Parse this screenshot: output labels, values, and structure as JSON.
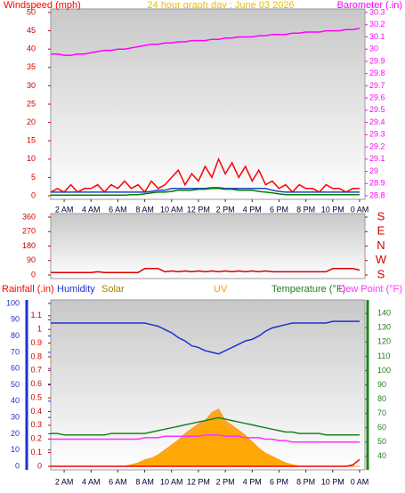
{
  "chart_data": [
    {
      "type": "line",
      "title": "24 hour graph day : June 03 2026",
      "x": [
        1,
        1.5,
        2,
        2.5,
        3,
        3.5,
        4,
        4.5,
        5,
        5.5,
        6,
        6.5,
        7,
        7.5,
        8,
        8.5,
        9,
        9.5,
        10,
        10.5,
        11,
        11.5,
        12,
        12.5,
        13,
        13.5,
        14,
        14.5,
        15,
        15.5,
        16,
        16.5,
        17,
        17.5,
        18,
        18.5,
        19,
        19.5,
        20,
        20.5,
        21,
        21.5,
        22,
        22.5,
        23,
        23.5,
        24
      ],
      "xlim": [
        1,
        24.4
      ],
      "xticks": [
        {
          "value": 2,
          "label": "2 AM"
        },
        {
          "value": 4,
          "label": "4 AM"
        },
        {
          "value": 6,
          "label": "6 AM"
        },
        {
          "value": 8,
          "label": "8 AM"
        },
        {
          "value": 10,
          "label": "10 AM"
        },
        {
          "value": 12,
          "label": "12 PM"
        },
        {
          "value": 14,
          "label": "2 PM"
        },
        {
          "value": 16,
          "label": "4 PM"
        },
        {
          "value": 18,
          "label": "6 PM"
        },
        {
          "value": 20,
          "label": "8 PM"
        },
        {
          "value": 22,
          "label": "10 PM"
        },
        {
          "value": 24,
          "label": "0 AM"
        }
      ],
      "ylim": [
        0,
        50
      ],
      "yticks": [
        0,
        5,
        10,
        15,
        20,
        25,
        30,
        35,
        40,
        45,
        50
      ],
      "y2lim": [
        28.8,
        30.3
      ],
      "y2ticks": [
        28.8,
        28.9,
        29,
        29.1,
        29.2,
        29.3,
        29.4,
        29.5,
        29.6,
        29.7,
        29.8,
        29.9,
        30,
        30.1,
        30.2,
        30.3
      ],
      "series": [
        {
          "name": "Windspeed (mph)",
          "color": "#ff0000",
          "values": [
            1,
            2,
            1,
            3,
            1,
            2,
            2,
            3,
            1,
            3,
            2,
            4,
            2,
            3,
            1,
            4,
            2,
            3,
            5,
            7,
            3,
            6,
            4,
            8,
            5,
            10,
            6,
            9,
            5,
            8,
            4,
            7,
            3,
            4,
            2,
            3,
            1,
            3,
            2,
            2,
            1,
            3,
            2,
            2,
            1,
            2,
            2
          ]
        },
        {
          "color": "#2040d0",
          "values": [
            1,
            1,
            1,
            1,
            1,
            1,
            1,
            1,
            1,
            1,
            1,
            1,
            1,
            1,
            1,
            1.2,
            1.5,
            1.5,
            2,
            2,
            2,
            2,
            2,
            2,
            2.2,
            2.2,
            2,
            2,
            2,
            2,
            2,
            2,
            2,
            1.5,
            1.2,
            1,
            1,
            1,
            1,
            1,
            1,
            1,
            1,
            1,
            1,
            1,
            1
          ]
        },
        {
          "color": "#008000",
          "values": [
            0.2,
            0.2,
            0.2,
            0.2,
            0.2,
            0.2,
            0.2,
            0.2,
            0.2,
            0.2,
            0.2,
            0.2,
            0.3,
            0.3,
            0.5,
            0.8,
            1,
            1,
            1.2,
            1.5,
            1.5,
            1.5,
            1.8,
            1.8,
            2,
            2,
            1.8,
            1.8,
            1.5,
            1.5,
            1.5,
            1.2,
            1,
            0.8,
            0.5,
            0.3,
            0.3,
            0.3,
            0.3,
            0.3,
            0.3,
            0.3,
            0.3,
            0.3,
            0.3,
            0.3,
            0.3
          ]
        },
        {
          "name": "Barometer (.in)",
          "color": "#ff00ff",
          "axis": "y2",
          "values": [
            29.96,
            29.96,
            29.95,
            29.95,
            29.96,
            29.96,
            29.97,
            29.98,
            29.99,
            29.99,
            30,
            30,
            30.01,
            30.02,
            30.03,
            30.04,
            30.04,
            30.05,
            30.05,
            30.06,
            30.06,
            30.07,
            30.07,
            30.07,
            30.08,
            30.08,
            30.09,
            30.09,
            30.1,
            30.1,
            30.1,
            30.11,
            30.11,
            30.12,
            30.12,
            30.12,
            30.13,
            30.13,
            30.14,
            30.14,
            30.14,
            30.15,
            30.15,
            30.15,
            30.16,
            30.16,
            30.17
          ]
        }
      ]
    },
    {
      "type": "line",
      "x": [
        1,
        1.5,
        2,
        2.5,
        3,
        3.5,
        4,
        4.5,
        5,
        5.5,
        6,
        6.5,
        7,
        7.5,
        8,
        8.5,
        9,
        9.5,
        10,
        10.5,
        11,
        11.5,
        12,
        12.5,
        13,
        13.5,
        14,
        14.5,
        15,
        15.5,
        16,
        16.5,
        17,
        17.5,
        18,
        18.5,
        19,
        19.5,
        20,
        20.5,
        21,
        21.5,
        22,
        22.5,
        23,
        23.5,
        24
      ],
      "xlim": [
        1,
        24.4
      ],
      "ylim": [
        0,
        360
      ],
      "yticks": [
        0,
        90,
        180,
        270,
        360
      ],
      "y2lim": [
        0,
        360
      ],
      "y2ticks": [
        {
          "value": 360,
          "label": "S"
        },
        {
          "value": 270,
          "label": "E"
        },
        {
          "value": 180,
          "label": "N"
        },
        {
          "value": 90,
          "label": "W"
        },
        {
          "value": 0,
          "label": "S"
        }
      ],
      "series": [
        {
          "color": "#e00000",
          "values": [
            15,
            15,
            15,
            15,
            15,
            15,
            15,
            20,
            15,
            15,
            15,
            15,
            15,
            15,
            40,
            40,
            40,
            20,
            25,
            20,
            25,
            20,
            25,
            20,
            25,
            20,
            25,
            20,
            25,
            20,
            25,
            20,
            25,
            20,
            20,
            20,
            20,
            20,
            20,
            20,
            20,
            20,
            40,
            40,
            40,
            40,
            30
          ]
        }
      ]
    },
    {
      "type": "line",
      "x": [
        1,
        1.5,
        2,
        2.5,
        3,
        3.5,
        4,
        4.5,
        5,
        5.5,
        6,
        6.5,
        7,
        7.5,
        8,
        8.5,
        9,
        9.5,
        10,
        10.5,
        11,
        11.5,
        12,
        12.5,
        13,
        13.5,
        14,
        14.5,
        15,
        15.5,
        16,
        16.5,
        17,
        17.5,
        18,
        18.5,
        19,
        19.5,
        20,
        20.5,
        21,
        21.5,
        22,
        22.5,
        23,
        23.5,
        24
      ],
      "xlim": [
        1,
        24.4
      ],
      "xticks": [
        {
          "value": 2,
          "label": "2 AM"
        },
        {
          "value": 4,
          "label": "4 AM"
        },
        {
          "value": 6,
          "label": "6 AM"
        },
        {
          "value": 8,
          "label": "8 AM"
        },
        {
          "value": 10,
          "label": "10 AM"
        },
        {
          "value": 12,
          "label": "12 PM"
        },
        {
          "value": 14,
          "label": "2 PM"
        },
        {
          "value": 16,
          "label": "4 PM"
        },
        {
          "value": 18,
          "label": "6 PM"
        },
        {
          "value": 20,
          "label": "8 PM"
        },
        {
          "value": 22,
          "label": "10 PM"
        },
        {
          "value": 24,
          "label": "0 AM"
        }
      ],
      "ylim": [
        0,
        100
      ],
      "yticks": [
        0,
        10,
        20,
        30,
        40,
        50,
        60,
        70,
        80,
        90,
        100
      ],
      "y2lim": [
        33,
        147
      ],
      "y2ticks": [
        40,
        50,
        60,
        70,
        80,
        90,
        100,
        110,
        120,
        130,
        140
      ],
      "y3lim": [
        0,
        1.19
      ],
      "y3ticks": [
        0,
        0.1,
        0.2,
        0.3,
        0.4,
        0.5,
        0.6,
        0.7,
        0.8,
        0.9,
        1,
        1.1
      ],
      "series": [
        {
          "name": "Rainfall (.in)",
          "color": "#ff0000",
          "axis": "y3",
          "values": [
            0,
            0,
            0,
            0,
            0,
            0,
            0,
            0,
            0,
            0,
            0,
            0,
            0,
            0,
            0,
            0,
            0,
            0,
            0,
            0,
            0,
            0,
            0,
            0,
            0,
            0,
            0,
            0,
            0,
            0,
            0,
            0,
            0,
            0,
            0,
            0,
            0,
            0,
            0,
            0,
            0,
            0,
            0,
            0,
            0,
            0.01,
            0.05
          ]
        },
        {
          "name": "Humidity",
          "color": "#2030d0",
          "values": [
            88,
            88,
            88,
            88,
            88,
            88,
            88,
            88,
            88,
            88,
            88,
            88,
            88,
            88,
            88,
            87,
            86,
            84,
            82,
            79,
            77,
            74,
            73,
            71,
            70,
            69,
            71,
            73,
            75,
            77,
            78,
            80,
            83,
            85,
            86,
            87,
            88,
            88,
            88,
            88,
            88,
            88,
            89,
            89,
            89,
            89,
            89
          ]
        },
        {
          "name": "Solar",
          "color": "#ffff00",
          "area": true,
          "values": [
            0,
            0,
            0,
            0,
            0,
            0,
            0,
            0,
            0,
            0,
            0,
            0,
            1,
            2,
            3,
            4,
            6,
            8,
            11,
            14,
            17,
            20,
            22,
            24,
            28,
            30,
            24,
            22,
            20,
            17,
            14,
            10,
            7,
            5,
            3,
            2,
            1,
            0,
            0,
            0,
            0,
            0,
            0,
            0,
            0,
            0,
            0
          ]
        },
        {
          "name": "UV",
          "color": "#ff9900",
          "area": true,
          "values": [
            0,
            0,
            0,
            0,
            0,
            0,
            0,
            0,
            0,
            0,
            0,
            0,
            1,
            2,
            4,
            5,
            7,
            10,
            13,
            16,
            20,
            23,
            26,
            28,
            33,
            35,
            28,
            25,
            22,
            19,
            15,
            11,
            8,
            6,
            4,
            2,
            1,
            0,
            0,
            0,
            0,
            0,
            0,
            0,
            0,
            0,
            0
          ]
        },
        {
          "name": "Temperature (°F)",
          "color": "#208020",
          "axis": "y2",
          "values": [
            56,
            56,
            55,
            55,
            55,
            55,
            55,
            55,
            55,
            56,
            56,
            56,
            56,
            56,
            56,
            57,
            58,
            59,
            60,
            61,
            62,
            63,
            64,
            65,
            66,
            67,
            66,
            65,
            64,
            63,
            62,
            61,
            60,
            59,
            58,
            57,
            57,
            56,
            56,
            56,
            56,
            55,
            55,
            55,
            55,
            55,
            55
          ]
        },
        {
          "name": "Dew Point (°F)",
          "color": "#ff30ff",
          "axis": "y2",
          "values": [
            52,
            52,
            52,
            52,
            52,
            52,
            52,
            52,
            52,
            52,
            52,
            52,
            52,
            52,
            53,
            53,
            53,
            54,
            54,
            54,
            54,
            54,
            54,
            55,
            55,
            55,
            54,
            54,
            54,
            53,
            53,
            53,
            52,
            52,
            51,
            51,
            50,
            50,
            50,
            50,
            50,
            50,
            50,
            50,
            50,
            50,
            50
          ]
        }
      ]
    }
  ]
}
